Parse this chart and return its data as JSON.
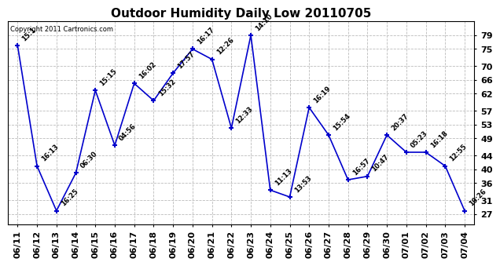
{
  "title": "Outdoor Humidity Daily Low 20110705",
  "copyright": "Copyright 2011 Cartronics.com",
  "x_labels": [
    "06/11",
    "06/12",
    "06/13",
    "06/14",
    "06/15",
    "06/16",
    "06/17",
    "06/18",
    "06/19",
    "06/20",
    "06/21",
    "06/22",
    "06/23",
    "06/24",
    "06/25",
    "06/26",
    "06/27",
    "06/28",
    "06/29",
    "06/30",
    "07/01",
    "07/02",
    "07/03",
    "07/04"
  ],
  "y_values": [
    76,
    41,
    28,
    39,
    63,
    47,
    65,
    60,
    68,
    75,
    72,
    52,
    79,
    34,
    32,
    58,
    50,
    37,
    38,
    50,
    45,
    45,
    41,
    28
  ],
  "point_labels": [
    "15:1",
    "16:13",
    "16:25",
    "06:30",
    "15:15",
    "04:56",
    "16:02",
    "15:32",
    "17:57",
    "16:17",
    "12:26",
    "12:33",
    "14:10",
    "11:13",
    "13:53",
    "16:19",
    "15:54",
    "16:57",
    "10:47",
    "20:37",
    "05:23",
    "16:18",
    "12:55",
    "10:26"
  ],
  "y_ticks": [
    27,
    31,
    36,
    40,
    44,
    49,
    53,
    57,
    62,
    66,
    70,
    75,
    79
  ],
  "ylim": [
    24,
    83
  ],
  "line_color": "#0000cc",
  "marker_color": "#0000cc",
  "grid_color": "#bbbbbb",
  "bg_color": "#ffffff",
  "title_fontsize": 11,
  "tick_fontsize": 8,
  "annot_fontsize": 6
}
